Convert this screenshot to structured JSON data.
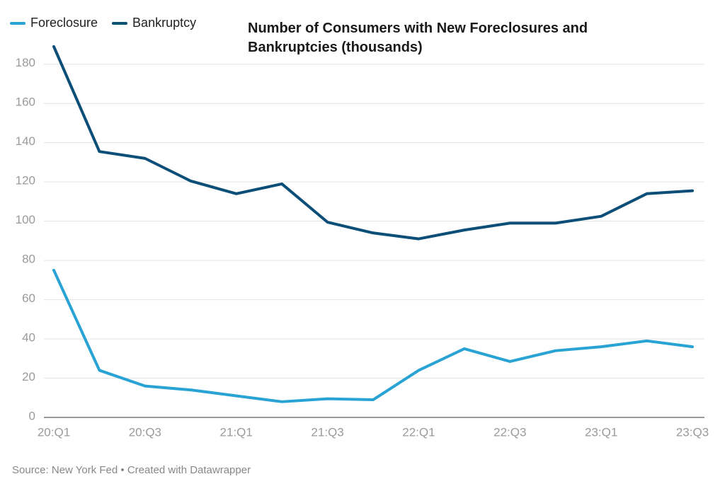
{
  "chart_data": {
    "type": "line",
    "title": "Number of Consumers with New Foreclosures and Bankruptcies (thousands)",
    "source": "Source: New York Fed • Created with Datawrapper",
    "categories": [
      "20:Q1",
      null,
      "20:Q3",
      null,
      "21:Q1",
      null,
      "21:Q3",
      null,
      "22:Q1",
      null,
      "22:Q3",
      null,
      "23:Q1",
      null,
      "23:Q3"
    ],
    "series": [
      {
        "name": "Foreclosure",
        "color": "#29a3d4",
        "values": [
          75,
          24,
          16,
          14,
          11,
          8,
          9.5,
          9,
          24,
          35,
          28.5,
          34,
          36,
          39,
          36
        ]
      },
      {
        "name": "Bankruptcy",
        "color": "#0b4e77",
        "values": [
          189,
          135.5,
          132,
          120.5,
          114,
          119,
          99.5,
          94,
          91,
          95.5,
          99,
          99,
          102.5,
          114,
          115.5
        ]
      }
    ],
    "ylim": [
      0,
      190
    ],
    "yticks": [
      0,
      20,
      40,
      60,
      80,
      100,
      120,
      140,
      160,
      180
    ],
    "grid": true
  }
}
